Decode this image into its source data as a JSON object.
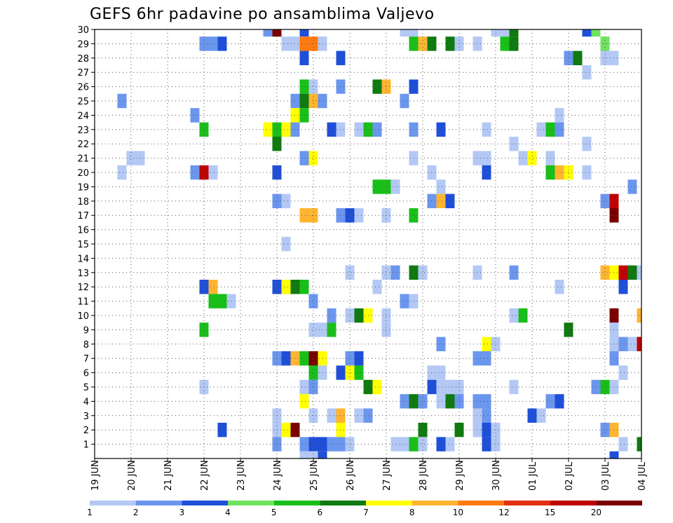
{
  "chart_data": {
    "type": "heatmap",
    "title": "GEFS 6hr padavine po ansamblima Valjevo",
    "x_tick_labels": [
      "19 JUN",
      "20 JUN",
      "21 JUN",
      "22 JUN",
      "23 JUN",
      "24 JUN",
      "25 JUN",
      "26 JUN",
      "27 JUN",
      "28 JUN",
      "29 JUN",
      "30 JUN",
      "01 JUL",
      "02 JUL",
      "03 JUL",
      "04 JUL"
    ],
    "y_tick_labels": [
      "1",
      "2",
      "3",
      "4",
      "5",
      "6",
      "7",
      "8",
      "9",
      "10",
      "11",
      "12",
      "13",
      "14",
      "15",
      "16",
      "17",
      "18",
      "19",
      "20",
      "21",
      "22",
      "23",
      "24",
      "25",
      "26",
      "27",
      "28",
      "29",
      "30"
    ],
    "y_range": [
      0,
      30
    ],
    "x_steps_per_day": 4,
    "x_range_steps": [
      0,
      60
    ],
    "grid": true,
    "grid_style": "dotted",
    "colorbar": {
      "labels": [
        "1",
        "2",
        "3",
        "4",
        "5",
        "6",
        "7",
        "8",
        "10",
        "12",
        "15",
        "20"
      ],
      "colors": [
        "#b3c8f4",
        "#6b96ee",
        "#1f4fd8",
        "#6fe35f",
        "#19bf19",
        "#0f7a0f",
        "#ffff00",
        "#ffb530",
        "#ff7a10",
        "#e03010",
        "#c00000",
        "#7a0000"
      ]
    },
    "cells": [
      [
        19,
        30,
        2
      ],
      [
        20,
        30,
        12
      ],
      [
        23,
        30,
        3
      ],
      [
        34,
        30,
        1
      ],
      [
        35,
        30,
        1
      ],
      [
        44,
        30,
        1
      ],
      [
        45,
        30,
        1
      ],
      [
        46,
        30,
        6
      ],
      [
        54,
        30,
        3
      ],
      [
        55,
        30,
        4
      ],
      [
        12,
        29,
        2
      ],
      [
        13,
        29,
        2
      ],
      [
        14,
        29,
        3
      ],
      [
        21,
        29,
        1
      ],
      [
        22,
        29,
        1
      ],
      [
        23,
        29,
        9
      ],
      [
        24,
        29,
        9
      ],
      [
        25,
        29,
        1
      ],
      [
        35,
        29,
        5
      ],
      [
        36,
        29,
        8
      ],
      [
        37,
        29,
        6
      ],
      [
        39,
        29,
        6
      ],
      [
        40,
        29,
        1
      ],
      [
        42,
        29,
        1
      ],
      [
        45,
        29,
        5
      ],
      [
        46,
        29,
        6
      ],
      [
        56,
        29,
        4
      ],
      [
        23,
        28,
        3
      ],
      [
        27,
        28,
        3
      ],
      [
        52,
        28,
        2
      ],
      [
        53,
        28,
        6
      ],
      [
        56,
        28,
        1
      ],
      [
        57,
        28,
        1
      ],
      [
        54,
        27,
        1
      ],
      [
        23,
        26,
        5
      ],
      [
        24,
        26,
        1
      ],
      [
        27,
        26,
        2
      ],
      [
        31,
        26,
        6
      ],
      [
        32,
        26,
        8
      ],
      [
        35,
        26,
        3
      ],
      [
        3,
        25,
        2
      ],
      [
        22,
        25,
        2
      ],
      [
        23,
        25,
        6
      ],
      [
        24,
        25,
        8
      ],
      [
        25,
        25,
        2
      ],
      [
        34,
        25,
        2
      ],
      [
        11,
        24,
        2
      ],
      [
        22,
        24,
        7
      ],
      [
        23,
        24,
        5
      ],
      [
        51,
        24,
        1
      ],
      [
        12,
        23,
        5
      ],
      [
        19,
        23,
        7
      ],
      [
        20,
        23,
        5
      ],
      [
        21,
        23,
        7
      ],
      [
        22,
        23,
        2
      ],
      [
        26,
        23,
        3
      ],
      [
        27,
        23,
        1
      ],
      [
        29,
        23,
        1
      ],
      [
        30,
        23,
        5
      ],
      [
        31,
        23,
        2
      ],
      [
        35,
        23,
        2
      ],
      [
        38,
        23,
        3
      ],
      [
        43,
        23,
        1
      ],
      [
        49,
        23,
        1
      ],
      [
        50,
        23,
        5
      ],
      [
        51,
        23,
        2
      ],
      [
        20,
        22,
        6
      ],
      [
        46,
        22,
        1
      ],
      [
        54,
        22,
        1
      ],
      [
        4,
        21,
        1
      ],
      [
        5,
        21,
        1
      ],
      [
        23,
        21,
        2
      ],
      [
        24,
        21,
        7
      ],
      [
        35,
        21,
        1
      ],
      [
        42,
        21,
        1
      ],
      [
        43,
        21,
        1
      ],
      [
        47,
        21,
        1
      ],
      [
        48,
        21,
        7
      ],
      [
        50,
        21,
        1
      ],
      [
        3,
        20,
        1
      ],
      [
        11,
        20,
        2
      ],
      [
        12,
        20,
        11
      ],
      [
        13,
        20,
        1
      ],
      [
        20,
        20,
        3
      ],
      [
        37,
        20,
        1
      ],
      [
        43,
        20,
        3
      ],
      [
        50,
        20,
        5
      ],
      [
        51,
        20,
        8
      ],
      [
        52,
        20,
        7
      ],
      [
        54,
        20,
        1
      ],
      [
        31,
        19,
        5
      ],
      [
        32,
        19,
        5
      ],
      [
        33,
        19,
        1
      ],
      [
        38,
        19,
        1
      ],
      [
        59,
        19,
        2
      ],
      [
        20,
        18,
        2
      ],
      [
        21,
        18,
        1
      ],
      [
        37,
        18,
        2
      ],
      [
        38,
        18,
        8
      ],
      [
        39,
        18,
        3
      ],
      [
        56,
        18,
        2
      ],
      [
        57,
        18,
        11
      ],
      [
        23,
        17,
        8
      ],
      [
        24,
        17,
        8
      ],
      [
        27,
        17,
        2
      ],
      [
        28,
        17,
        3
      ],
      [
        29,
        17,
        1
      ],
      [
        32,
        17,
        1
      ],
      [
        35,
        17,
        5
      ],
      [
        57,
        17,
        12
      ],
      [
        21,
        15,
        1
      ],
      [
        28,
        13,
        1
      ],
      [
        32,
        13,
        1
      ],
      [
        33,
        13,
        2
      ],
      [
        35,
        13,
        6
      ],
      [
        36,
        13,
        1
      ],
      [
        42,
        13,
        1
      ],
      [
        46,
        13,
        2
      ],
      [
        56,
        13,
        8
      ],
      [
        57,
        13,
        7
      ],
      [
        58,
        13,
        11
      ],
      [
        59,
        13,
        6
      ],
      [
        60,
        13,
        1
      ],
      [
        12,
        12,
        3
      ],
      [
        13,
        12,
        8
      ],
      [
        20,
        12,
        3
      ],
      [
        21,
        12,
        7
      ],
      [
        22,
        12,
        6
      ],
      [
        23,
        12,
        5
      ],
      [
        31,
        12,
        1
      ],
      [
        51,
        12,
        1
      ],
      [
        58,
        12,
        3
      ],
      [
        13,
        11,
        5
      ],
      [
        14,
        11,
        5
      ],
      [
        15,
        11,
        1
      ],
      [
        24,
        11,
        2
      ],
      [
        34,
        11,
        2
      ],
      [
        35,
        11,
        1
      ],
      [
        26,
        10,
        2
      ],
      [
        28,
        10,
        1
      ],
      [
        29,
        10,
        6
      ],
      [
        30,
        10,
        7
      ],
      [
        32,
        10,
        1
      ],
      [
        46,
        10,
        1
      ],
      [
        47,
        10,
        5
      ],
      [
        57,
        10,
        12
      ],
      [
        60,
        10,
        8
      ],
      [
        12,
        9,
        5
      ],
      [
        24,
        9,
        1
      ],
      [
        25,
        9,
        1
      ],
      [
        26,
        9,
        5
      ],
      [
        32,
        9,
        1
      ],
      [
        52,
        9,
        6
      ],
      [
        57,
        9,
        1
      ],
      [
        38,
        8,
        2
      ],
      [
        43,
        8,
        7
      ],
      [
        44,
        8,
        1
      ],
      [
        57,
        8,
        1
      ],
      [
        58,
        8,
        2
      ],
      [
        59,
        8,
        1
      ],
      [
        60,
        8,
        11
      ],
      [
        20,
        7,
        2
      ],
      [
        21,
        7,
        3
      ],
      [
        22,
        7,
        8
      ],
      [
        23,
        7,
        5
      ],
      [
        24,
        7,
        12
      ],
      [
        25,
        7,
        7
      ],
      [
        28,
        7,
        2
      ],
      [
        29,
        7,
        3
      ],
      [
        42,
        7,
        2
      ],
      [
        43,
        7,
        2
      ],
      [
        57,
        7,
        2
      ],
      [
        24,
        6,
        5
      ],
      [
        25,
        6,
        1
      ],
      [
        27,
        6,
        3
      ],
      [
        28,
        6,
        7
      ],
      [
        29,
        6,
        5
      ],
      [
        37,
        6,
        1
      ],
      [
        38,
        6,
        1
      ],
      [
        58,
        6,
        1
      ],
      [
        12,
        5,
        1
      ],
      [
        23,
        5,
        1
      ],
      [
        24,
        5,
        2
      ],
      [
        30,
        5,
        6
      ],
      [
        31,
        5,
        7
      ],
      [
        37,
        5,
        3
      ],
      [
        38,
        5,
        1
      ],
      [
        39,
        5,
        1
      ],
      [
        40,
        5,
        1
      ],
      [
        46,
        5,
        1
      ],
      [
        55,
        5,
        2
      ],
      [
        56,
        5,
        5
      ],
      [
        57,
        5,
        1
      ],
      [
        23,
        4,
        7
      ],
      [
        34,
        4,
        2
      ],
      [
        35,
        4,
        6
      ],
      [
        36,
        4,
        2
      ],
      [
        38,
        4,
        1
      ],
      [
        39,
        4,
        6
      ],
      [
        40,
        4,
        2
      ],
      [
        42,
        4,
        2
      ],
      [
        43,
        4,
        2
      ],
      [
        50,
        4,
        2
      ],
      [
        51,
        4,
        3
      ],
      [
        20,
        3,
        1
      ],
      [
        24,
        3,
        1
      ],
      [
        26,
        3,
        1
      ],
      [
        27,
        3,
        8
      ],
      [
        29,
        3,
        1
      ],
      [
        30,
        3,
        2
      ],
      [
        42,
        3,
        1
      ],
      [
        43,
        3,
        2
      ],
      [
        48,
        3,
        3
      ],
      [
        49,
        3,
        1
      ],
      [
        14,
        2,
        3
      ],
      [
        20,
        2,
        1
      ],
      [
        21,
        2,
        7
      ],
      [
        22,
        2,
        12
      ],
      [
        27,
        2,
        7
      ],
      [
        36,
        2,
        6
      ],
      [
        40,
        2,
        6
      ],
      [
        42,
        2,
        1
      ],
      [
        43,
        2,
        3
      ],
      [
        44,
        2,
        1
      ],
      [
        56,
        2,
        2
      ],
      [
        57,
        2,
        8
      ],
      [
        20,
        1,
        2
      ],
      [
        23,
        1,
        2
      ],
      [
        24,
        1,
        3
      ],
      [
        25,
        1,
        3
      ],
      [
        26,
        1,
        2
      ],
      [
        27,
        1,
        2
      ],
      [
        28,
        1,
        1
      ],
      [
        33,
        1,
        1
      ],
      [
        34,
        1,
        1
      ],
      [
        35,
        1,
        5
      ],
      [
        36,
        1,
        1
      ],
      [
        38,
        1,
        3
      ],
      [
        39,
        1,
        1
      ],
      [
        43,
        1,
        3
      ],
      [
        44,
        1,
        1
      ],
      [
        58,
        1,
        1
      ],
      [
        60,
        1,
        6
      ],
      [
        23,
        0,
        1
      ],
      [
        24,
        0,
        1
      ],
      [
        25,
        0,
        3
      ],
      [
        57,
        0,
        3
      ]
    ]
  }
}
